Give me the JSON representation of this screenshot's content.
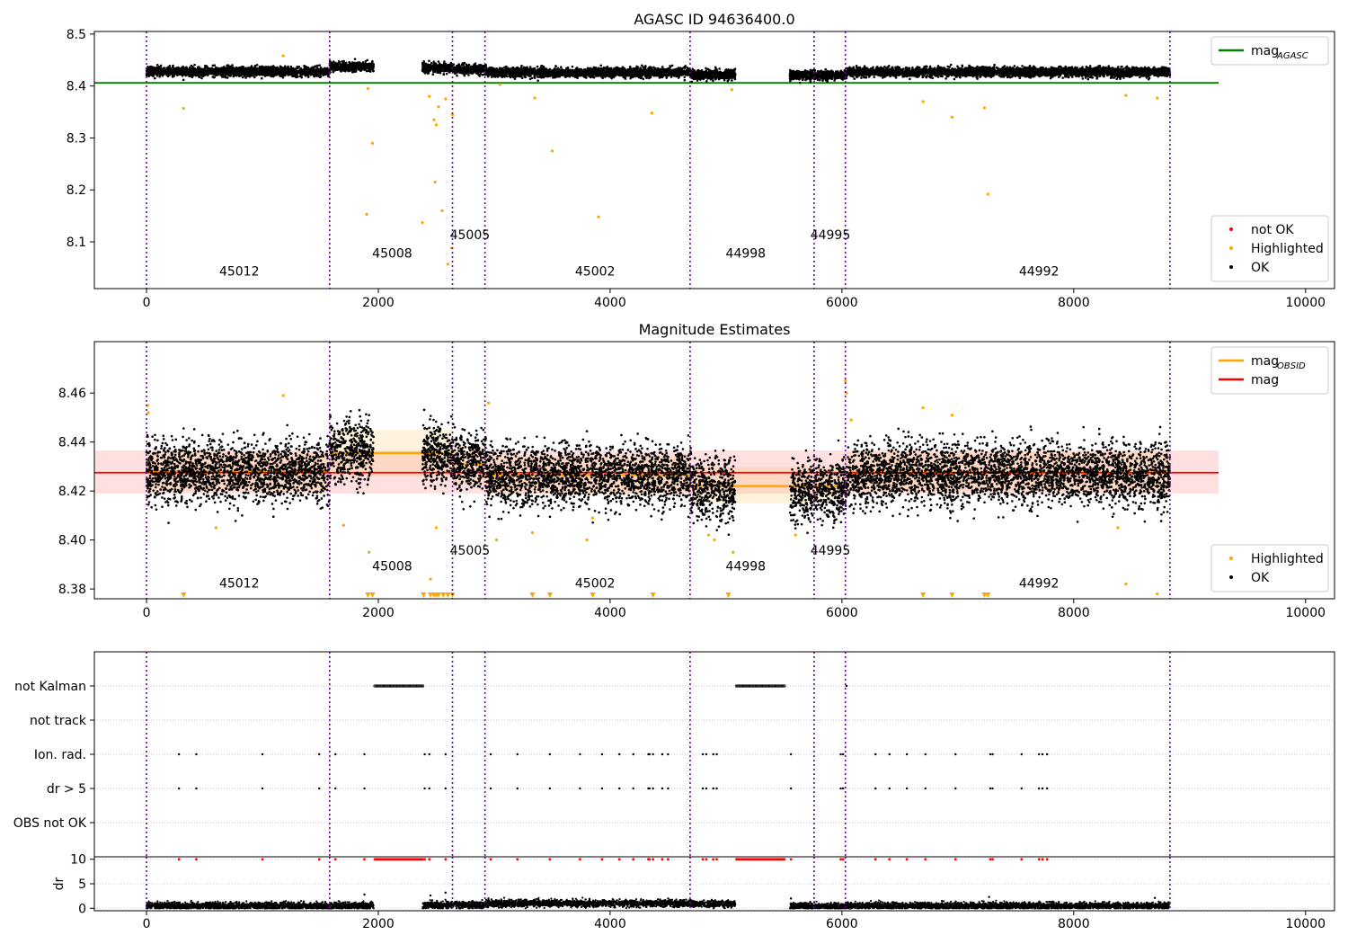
{
  "chart_data": [
    {
      "type": "scatter",
      "title": "AGASC ID 94636400.0",
      "xlabel": "",
      "ylabel": "",
      "xlim": [
        -450,
        10250
      ],
      "ylim": [
        8.01,
        8.505
      ],
      "x_ticks": [
        0,
        2000,
        4000,
        6000,
        8000,
        10000
      ],
      "y_ticks": [
        8.1,
        8.2,
        8.3,
        8.4,
        8.5
      ],
      "grid": false,
      "series": [
        {
          "name": "mag_AGASC",
          "kind": "line",
          "color": "#008000",
          "x": [
            -450,
            9250
          ],
          "y": [
            8.406,
            8.406
          ]
        },
        {
          "name": "not OK",
          "kind": "points",
          "color": "#ff0000",
          "points": []
        },
        {
          "name": "Highlighted",
          "kind": "points",
          "color": "#ffa500",
          "points": [
            [
              320,
              8.357
            ],
            [
              1180,
              8.458
            ],
            [
              1900,
              8.153
            ],
            [
              1910,
              8.395
            ],
            [
              1950,
              8.29
            ],
            [
              2380,
              8.137
            ],
            [
              2440,
              8.38
            ],
            [
              2480,
              8.335
            ],
            [
              2490,
              8.215
            ],
            [
              2500,
              8.325
            ],
            [
              2520,
              8.36
            ],
            [
              2550,
              8.16
            ],
            [
              2580,
              8.375
            ],
            [
              2600,
              8.057
            ],
            [
              2630,
              8.088
            ],
            [
              2640,
              8.345
            ],
            [
              3050,
              8.403
            ],
            [
              3350,
              8.377
            ],
            [
              3500,
              8.275
            ],
            [
              3900,
              8.148
            ],
            [
              4360,
              8.348
            ],
            [
              5050,
              8.393
            ],
            [
              6700,
              8.37
            ],
            [
              6950,
              8.34
            ],
            [
              7230,
              8.358
            ],
            [
              7260,
              8.192
            ],
            [
              8450,
              8.382
            ],
            [
              8720,
              8.377
            ]
          ]
        },
        {
          "name": "OK",
          "kind": "band",
          "color": "#000000",
          "segments": [
            {
              "x": [
                0,
                1580
              ],
              "center": 8.428
            },
            {
              "x": [
                1580,
                1960
              ],
              "center": 8.437
            },
            {
              "x": [
                2380,
                2650
              ],
              "center": 8.435
            },
            {
              "x": [
                2650,
                2930
              ],
              "center": 8.432
            },
            {
              "x": [
                2930,
                4700
              ],
              "center": 8.426
            },
            {
              "x": [
                4700,
                5080
              ],
              "center": 8.422
            },
            {
              "x": [
                5550,
                6040
              ],
              "center": 8.421
            },
            {
              "x": [
                6040,
                8830
              ],
              "center": 8.427
            }
          ]
        }
      ],
      "obsid_lines": [
        0,
        1580,
        2640,
        2920,
        4690,
        5760,
        6030,
        8830
      ],
      "obsid_labels": [
        {
          "text": "45012",
          "x": 800,
          "y": 8.035
        },
        {
          "text": "45008",
          "x": 2120,
          "y": 8.07
        },
        {
          "text": "45005",
          "x": 2790,
          "y": 8.105
        },
        {
          "text": "45002",
          "x": 3870,
          "y": 8.035
        },
        {
          "text": "44998",
          "x": 5170,
          "y": 8.07
        },
        {
          "text": "44995",
          "x": 5900,
          "y": 8.105
        },
        {
          "text": "44992",
          "x": 7700,
          "y": 8.035
        }
      ],
      "legends": [
        {
          "position": "top-right",
          "entries": [
            {
              "label": "mag",
              "sub": "AGASC",
              "kind": "line",
              "color": "#008000"
            }
          ]
        },
        {
          "position": "bottom-right",
          "entries": [
            {
              "label": "not OK",
              "kind": "dot",
              "color": "#ff0000"
            },
            {
              "label": "Highlighted",
              "kind": "dot",
              "color": "#ffa500"
            },
            {
              "label": "OK",
              "kind": "dot",
              "color": "#000000"
            }
          ]
        }
      ]
    },
    {
      "type": "scatter",
      "title": "Magnitude Estimates",
      "xlabel": "",
      "ylabel": "",
      "xlim": [
        -450,
        10250
      ],
      "ylim": [
        8.376,
        8.481
      ],
      "x_ticks": [
        0,
        2000,
        4000,
        6000,
        8000,
        10000
      ],
      "y_ticks": [
        8.38,
        8.4,
        8.42,
        8.44,
        8.46
      ],
      "grid": false,
      "mag": {
        "value": 8.4275,
        "band": [
          8.419,
          8.4365
        ],
        "color": "#ff0000",
        "x": [
          -450,
          9250
        ]
      },
      "mag_obsid": [
        {
          "x": [
            0,
            1580
          ],
          "value": 8.428,
          "band": [
            8.42,
            8.436
          ]
        },
        {
          "x": [
            1580,
            2640
          ],
          "value": 8.4355,
          "band": [
            8.426,
            8.445
          ]
        },
        {
          "x": [
            2640,
            2920
          ],
          "value": 8.431,
          "band": [
            8.423,
            8.439
          ]
        },
        {
          "x": [
            2920,
            4690
          ],
          "value": 8.4265,
          "band": [
            8.419,
            8.434
          ]
        },
        {
          "x": [
            4690,
            6030
          ],
          "value": 8.422,
          "band": [
            8.415,
            8.43
          ]
        },
        {
          "x": [
            6030,
            8830
          ],
          "value": 8.4275,
          "band": [
            8.42,
            8.436
          ]
        }
      ],
      "series": [
        {
          "name": "Highlighted",
          "kind": "points",
          "color": "#ffa500",
          "points": [
            [
              10,
              8.455
            ],
            [
              15,
              8.452
            ],
            [
              600,
              8.405
            ],
            [
              1180,
              8.459
            ],
            [
              1700,
              8.406
            ],
            [
              1920,
              8.395
            ],
            [
              2450,
              8.384
            ],
            [
              2500,
              8.405
            ],
            [
              2950,
              8.456
            ],
            [
              3020,
              8.4
            ],
            [
              3330,
              8.403
            ],
            [
              3800,
              8.4
            ],
            [
              3850,
              8.409
            ],
            [
              4850,
              8.402
            ],
            [
              4900,
              8.4
            ],
            [
              5060,
              8.395
            ],
            [
              5600,
              8.402
            ],
            [
              6030,
              8.465
            ],
            [
              6040,
              8.46
            ],
            [
              6080,
              8.449
            ],
            [
              6700,
              8.454
            ],
            [
              6950,
              8.451
            ],
            [
              8380,
              8.405
            ],
            [
              8450,
              8.382
            ],
            [
              8720,
              8.378
            ]
          ]
        },
        {
          "name": "Highlighted (off-scale)",
          "kind": "markers",
          "color": "#ffa500",
          "x": [
            320,
            1910,
            1950,
            2390,
            2450,
            2480,
            2500,
            2520,
            2560,
            2600,
            2640,
            3330,
            3480,
            3850,
            4370,
            5020,
            6700,
            6950,
            7230,
            7260
          ]
        },
        {
          "name": "OK",
          "kind": "band",
          "color": "#000000",
          "segments": [
            {
              "x": [
                0,
                1580
              ],
              "center": 8.428
            },
            {
              "x": [
                1580,
                1960
              ],
              "center": 8.436
            },
            {
              "x": [
                2380,
                2650
              ],
              "center": 8.435
            },
            {
              "x": [
                2650,
                2930
              ],
              "center": 8.432
            },
            {
              "x": [
                2930,
                4700
              ],
              "center": 8.426
            },
            {
              "x": [
                4700,
                5080
              ],
              "center": 8.421
            },
            {
              "x": [
                5550,
                6040
              ],
              "center": 8.42
            },
            {
              "x": [
                6040,
                8830
              ],
              "center": 8.427
            }
          ]
        }
      ],
      "obsid_lines": [
        0,
        1580,
        2640,
        2920,
        4690,
        5760,
        6030,
        8830
      ],
      "obsid_labels": [
        {
          "text": "45012",
          "x": 800,
          "y": 8.3805
        },
        {
          "text": "45008",
          "x": 2120,
          "y": 8.3875
        },
        {
          "text": "45005",
          "x": 2790,
          "y": 8.394
        },
        {
          "text": "45002",
          "x": 3870,
          "y": 8.3805
        },
        {
          "text": "44998",
          "x": 5170,
          "y": 8.3875
        },
        {
          "text": "44995",
          "x": 5900,
          "y": 8.394
        },
        {
          "text": "44992",
          "x": 7700,
          "y": 8.3805
        }
      ],
      "legends": [
        {
          "position": "top-right",
          "entries": [
            {
              "label": "mag",
              "sub": "OBSID",
              "kind": "line",
              "color": "#ffa500"
            },
            {
              "label": "mag",
              "kind": "line",
              "color": "#ff0000"
            }
          ]
        },
        {
          "position": "bottom-right",
          "entries": [
            {
              "label": "Highlighted",
              "kind": "dot",
              "color": "#ffa500"
            },
            {
              "label": "OK",
              "kind": "dot",
              "color": "#000000"
            }
          ]
        }
      ]
    },
    {
      "type": "scatter",
      "title": "",
      "xlabel": "",
      "ylabel": "",
      "xlim": [
        -450,
        10250
      ],
      "categories": [
        "not Kalman",
        "not track",
        "Ion. rad.",
        "dr > 5",
        "OBS not OK"
      ],
      "flags": [
        {
          "category": "not Kalman",
          "ranges": [
            [
              1970,
              2390
            ],
            [
              5090,
              5510
            ]
          ],
          "x": [
            6040
          ]
        },
        {
          "category": "not track",
          "ranges": [],
          "x": []
        },
        {
          "category": "Ion. rad.",
          "ranges": [],
          "x": [
            280,
            430,
            1000,
            1490,
            1630,
            1880,
            2400,
            2440,
            2580,
            2970,
            3200,
            3480,
            3740,
            3930,
            4080,
            4200,
            4330,
            4340,
            4370,
            4450,
            4500,
            4800,
            4830,
            4890,
            4920,
            5560,
            5990,
            6010,
            6290,
            6410,
            6560,
            6720,
            6980,
            7280,
            7300,
            7550,
            7700,
            7730,
            7770
          ]
        },
        {
          "category": "dr > 5",
          "ranges": [],
          "x": [
            280,
            430,
            1000,
            1490,
            1630,
            1880,
            2400,
            2440,
            2580,
            2970,
            3200,
            3480,
            3740,
            3930,
            4080,
            4200,
            4330,
            4340,
            4370,
            4450,
            4500,
            4800,
            4830,
            4890,
            4920,
            5560,
            5990,
            6010,
            6290,
            6410,
            6560,
            6720,
            6980,
            7280,
            7300,
            7550,
            7700,
            7730,
            7770
          ]
        },
        {
          "category": "OBS not OK",
          "ranges": [],
          "x": []
        }
      ],
      "obsid_lines": [
        0,
        1580,
        2640,
        2920,
        4690,
        5760,
        6030,
        8830
      ]
    },
    {
      "type": "scatter",
      "title": "",
      "xlabel": "",
      "ylabel": "dr",
      "xlim": [
        -450,
        10250
      ],
      "ylim": [
        -0.5,
        10.5
      ],
      "x_ticks": [
        0,
        2000,
        4000,
        6000,
        8000,
        10000
      ],
      "y_ticks": [
        0,
        5,
        10
      ],
      "series": [
        {
          "name": "dr",
          "kind": "band",
          "color": "#000000",
          "segments": [
            {
              "x": [
                0,
                1960
              ],
              "center": 0.5
            },
            {
              "x": [
                2380,
                2930
              ],
              "center": 0.7
            },
            {
              "x": [
                2930,
                4690
              ],
              "center": 1.0
            },
            {
              "x": [
                4690,
                5080
              ],
              "center": 0.9
            },
            {
              "x": [
                5550,
                6030
              ],
              "center": 0.4
            },
            {
              "x": [
                6030,
                8830
              ],
              "center": 0.5
            }
          ]
        },
        {
          "name": "dr outliers",
          "kind": "points",
          "color": "#000000",
          "points": [
            [
              1880,
              2.8
            ],
            [
              2450,
              2.6
            ],
            [
              2580,
              3.2
            ],
            [
              4500,
              2.0
            ],
            [
              7270,
              2.3
            ],
            [
              8700,
              2.1
            ],
            [
              5560,
              2.0
            ]
          ]
        },
        {
          "name": "dr > 5 (clipped)",
          "kind": "markers",
          "color": "#ff0000",
          "x": [
            280,
            430,
            1000,
            1490,
            1630,
            1880,
            2400,
            2440,
            2580,
            2970,
            3200,
            3480,
            3740,
            3930,
            4080,
            4200,
            4330,
            4340,
            4370,
            4450,
            4500,
            4800,
            4830,
            4890,
            4920,
            5560,
            5990,
            6010,
            6290,
            6410,
            6560,
            6720,
            6980,
            7280,
            7300,
            7550,
            7700,
            7730,
            7770
          ],
          "ranges": [
            [
              1970,
              2390
            ],
            [
              5090,
              5510
            ]
          ]
        }
      ],
      "obsid_lines": [
        0,
        1580,
        2640,
        2920,
        4690,
        5760,
        6030,
        8830
      ]
    }
  ]
}
